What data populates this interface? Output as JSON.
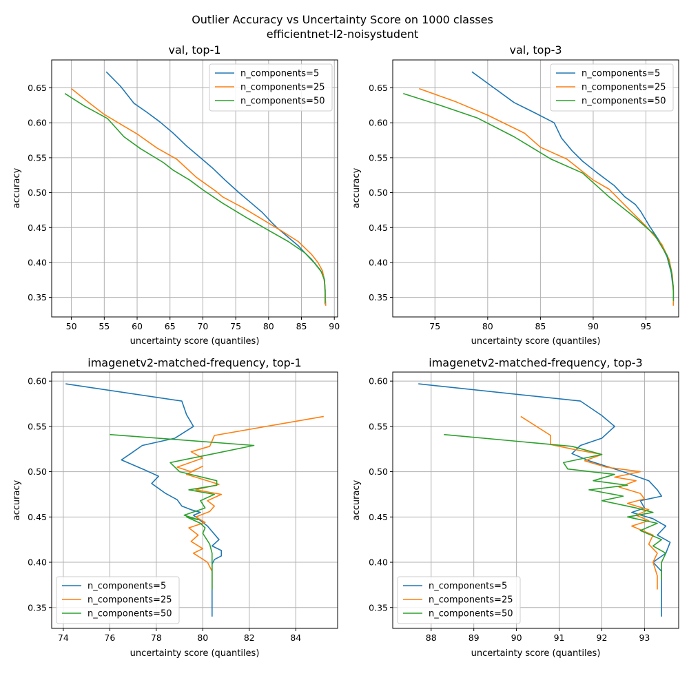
{
  "figure": {
    "title_line1": "Outlier Accuracy vs Uncertainty Score on 1000 classes",
    "title_line2": "efficientnet-l2-noisystudent"
  },
  "colors": {
    "series5": "#1f77b4",
    "series25": "#ff7f0e",
    "series50": "#2ca02c",
    "grid": "#b0b0b0"
  },
  "chart_data": [
    {
      "type": "line",
      "title": "val, top-1",
      "xlabel": "uncertainty score (quantiles)",
      "ylabel": "accuracy",
      "xlim": [
        47,
        90.5
      ],
      "ylim": [
        0.322,
        0.69
      ],
      "xticks": [
        50,
        55,
        60,
        65,
        70,
        75,
        80,
        85,
        90
      ],
      "yticks": [
        0.35,
        0.4,
        0.45,
        0.5,
        0.55,
        0.6,
        0.65
      ],
      "grid": true,
      "legend": "upper right",
      "series": [
        {
          "name": "n_components=5",
          "x": [
            55.3,
            57.5,
            59.5,
            61.5,
            63.5,
            65.5,
            67.5,
            69.5,
            71.5,
            73.5,
            75.5,
            77.5,
            79,
            79.5,
            80.5,
            81.5,
            82.5,
            83.5,
            84.5,
            85.5,
            86.5,
            87.2,
            87.8,
            88.3,
            88.5,
            88.6,
            88.6
          ],
          "y": [
            0.673,
            0.652,
            0.628,
            0.615,
            0.601,
            0.585,
            0.567,
            0.551,
            0.535,
            0.517,
            0.5,
            0.484,
            0.472,
            0.467,
            0.457,
            0.448,
            0.44,
            0.432,
            0.424,
            0.414,
            0.405,
            0.397,
            0.39,
            0.383,
            0.375,
            0.36,
            0.34
          ]
        },
        {
          "name": "n_components=25",
          "x": [
            50,
            52.5,
            55,
            57.5,
            60,
            63,
            66,
            69,
            72,
            73,
            76,
            79,
            82,
            84.5,
            86.5,
            87.5,
            88.2,
            88.5,
            88.6,
            88.7
          ],
          "y": [
            0.649,
            0.63,
            0.612,
            0.598,
            0.584,
            0.564,
            0.548,
            0.522,
            0.502,
            0.494,
            0.479,
            0.462,
            0.445,
            0.43,
            0.412,
            0.4,
            0.388,
            0.372,
            0.355,
            0.338
          ]
        },
        {
          "name": "n_components=50",
          "x": [
            49,
            52,
            55.5,
            58,
            60.5,
            64,
            65.5,
            68,
            70,
            73,
            76.5,
            80,
            83,
            85.5,
            87,
            88,
            88.5,
            88.6,
            88.6
          ],
          "y": [
            0.642,
            0.624,
            0.606,
            0.58,
            0.563,
            0.543,
            0.532,
            0.518,
            0.504,
            0.485,
            0.465,
            0.446,
            0.43,
            0.414,
            0.399,
            0.387,
            0.375,
            0.36,
            0.342
          ]
        }
      ]
    },
    {
      "type": "line",
      "title": "val, top-3",
      "xlabel": "uncertainty score (quantiles)",
      "ylabel": "accuracy",
      "xlim": [
        71,
        98.1
      ],
      "ylim": [
        0.322,
        0.69
      ],
      "xticks": [
        75,
        80,
        85,
        90,
        95
      ],
      "yticks": [
        0.35,
        0.4,
        0.45,
        0.5,
        0.55,
        0.6,
        0.65
      ],
      "grid": true,
      "legend": "upper right",
      "series": [
        {
          "name": "n_components=5",
          "x": [
            78.5,
            80.5,
            82.5,
            84.5,
            86.3,
            87,
            88,
            89,
            90.5,
            92,
            93,
            94,
            94.5,
            95.3,
            96.3,
            97,
            97.4,
            97.6,
            97.6
          ],
          "y": [
            0.673,
            0.651,
            0.629,
            0.614,
            0.6,
            0.578,
            0.56,
            0.545,
            0.527,
            0.51,
            0.494,
            0.483,
            0.473,
            0.453,
            0.43,
            0.408,
            0.385,
            0.36,
            0.343
          ]
        },
        {
          "name": "n_components=25",
          "x": [
            73.5,
            77,
            80,
            83.5,
            85,
            87.5,
            90,
            91.5,
            93,
            95,
            96.5,
            97.2,
            97.5,
            97.6,
            97.6
          ],
          "y": [
            0.649,
            0.63,
            0.611,
            0.585,
            0.565,
            0.548,
            0.518,
            0.505,
            0.482,
            0.452,
            0.426,
            0.404,
            0.382,
            0.358,
            0.338
          ]
        },
        {
          "name": "n_components=50",
          "x": [
            72,
            75.5,
            79,
            82.5,
            86,
            89,
            91.5,
            94,
            95.8,
            97,
            97.4,
            97.6,
            97.6
          ],
          "y": [
            0.642,
            0.625,
            0.607,
            0.58,
            0.548,
            0.528,
            0.494,
            0.464,
            0.44,
            0.41,
            0.388,
            0.365,
            0.345
          ]
        }
      ]
    },
    {
      "type": "line",
      "title": "imagenetv2-matched-frequency, top-1",
      "xlabel": "uncertainty score (quantiles)",
      "ylabel": "accuracy",
      "xlim": [
        73.5,
        85.8
      ],
      "ylim": [
        0.327,
        0.61
      ],
      "xticks": [
        74,
        76,
        78,
        80,
        82,
        84
      ],
      "yticks": [
        0.35,
        0.4,
        0.45,
        0.5,
        0.55,
        0.6
      ],
      "grid": true,
      "legend": "lower left",
      "series": [
        {
          "name": "n_components=5",
          "x": [
            74.1,
            79.1,
            79.3,
            79.6,
            78.8,
            77.4,
            76.9,
            76.5,
            77.5,
            78.1,
            77.8,
            78.4,
            78.9,
            79.1,
            79.5,
            79.9,
            79.6,
            80.2,
            80.7,
            80.4,
            80.8,
            80.8,
            80.5,
            80.4,
            80.4,
            80.4,
            80.4,
            80.4
          ],
          "y": [
            0.597,
            0.578,
            0.563,
            0.55,
            0.537,
            0.529,
            0.52,
            0.513,
            0.502,
            0.495,
            0.487,
            0.476,
            0.469,
            0.462,
            0.458,
            0.455,
            0.452,
            0.44,
            0.425,
            0.418,
            0.413,
            0.407,
            0.403,
            0.398,
            0.39,
            0.375,
            0.358,
            0.34
          ]
        },
        {
          "name": "n_components=25",
          "x": [
            85.2,
            80.5,
            80.3,
            79.5,
            80,
            78.9,
            79.5,
            80,
            79.3,
            80.7,
            79.7,
            80.8,
            80.2,
            80.5,
            80.3,
            79.7,
            80.1,
            79.4,
            79.8,
            79.5,
            80,
            79.6,
            80.2,
            80.4,
            80.4,
            80.4
          ],
          "y": [
            0.561,
            0.54,
            0.528,
            0.522,
            0.515,
            0.505,
            0.5,
            0.506,
            0.497,
            0.486,
            0.48,
            0.475,
            0.468,
            0.462,
            0.456,
            0.45,
            0.444,
            0.438,
            0.43,
            0.423,
            0.415,
            0.41,
            0.4,
            0.39,
            0.38,
            0.37
          ]
        },
        {
          "name": "n_components=50",
          "x": [
            76,
            82.2,
            80.5,
            78.6,
            79,
            80.6,
            80.6,
            79.4,
            80.5,
            79.9,
            80.1,
            79.2,
            79.8,
            79.3,
            79.9,
            80.1,
            80,
            80.3,
            80.4,
            80.4,
            80.4,
            80.4,
            80.4
          ],
          "y": [
            0.541,
            0.529,
            0.52,
            0.51,
            0.5,
            0.49,
            0.485,
            0.48,
            0.475,
            0.468,
            0.46,
            0.452,
            0.447,
            0.45,
            0.443,
            0.438,
            0.432,
            0.42,
            0.41,
            0.4,
            0.39,
            0.38,
            0.37
          ]
        }
      ]
    },
    {
      "type": "line",
      "title": "imagenetv2-matched-frequency, top-3",
      "xlabel": "uncertainty score (quantiles)",
      "ylabel": "accuracy",
      "xlim": [
        87.1,
        93.8
      ],
      "ylim": [
        0.327,
        0.61
      ],
      "xticks": [
        88,
        89,
        90,
        91,
        92,
        93
      ],
      "yticks": [
        0.35,
        0.4,
        0.45,
        0.5,
        0.55,
        0.6
      ],
      "grid": true,
      "legend": "lower left",
      "series": [
        {
          "name": "n_components=5",
          "x": [
            87.7,
            91.5,
            92,
            92.3,
            92,
            91.5,
            91.3,
            91.7,
            92.5,
            93.1,
            93.3,
            93.4,
            92.9,
            93,
            92.7,
            93.2,
            93.5,
            93.3,
            93.6,
            93.5,
            93.2,
            93.4,
            93.4,
            93.4,
            93.4
          ],
          "y": [
            0.597,
            0.578,
            0.562,
            0.55,
            0.537,
            0.529,
            0.52,
            0.512,
            0.5,
            0.49,
            0.48,
            0.473,
            0.468,
            0.46,
            0.455,
            0.448,
            0.44,
            0.43,
            0.422,
            0.41,
            0.4,
            0.39,
            0.38,
            0.36,
            0.34
          ]
        },
        {
          "name": "n_components=25",
          "x": [
            90.1,
            90.8,
            90.8,
            91.3,
            92,
            91.6,
            92.1,
            92.9,
            92.3,
            92.8,
            92.4,
            92.9,
            93,
            92.6,
            93.1,
            92.8,
            93.1,
            92.7,
            93.2,
            93.1,
            93.3,
            93.2,
            93.3,
            93.3
          ],
          "y": [
            0.561,
            0.54,
            0.53,
            0.525,
            0.519,
            0.512,
            0.505,
            0.5,
            0.494,
            0.49,
            0.483,
            0.476,
            0.47,
            0.465,
            0.458,
            0.452,
            0.446,
            0.44,
            0.43,
            0.42,
            0.41,
            0.4,
            0.385,
            0.37
          ]
        },
        {
          "name": "n_components=50",
          "x": [
            88.3,
            91.3,
            92,
            91.1,
            91.2,
            92.3,
            91.8,
            92.6,
            91.7,
            92.5,
            92,
            92.8,
            93.2,
            92.6,
            93.3,
            92.9,
            93.4,
            93.2,
            93.5,
            93.4,
            93.4,
            93.4
          ],
          "y": [
            0.541,
            0.528,
            0.519,
            0.51,
            0.503,
            0.497,
            0.49,
            0.485,
            0.48,
            0.473,
            0.468,
            0.46,
            0.455,
            0.45,
            0.443,
            0.435,
            0.425,
            0.418,
            0.41,
            0.4,
            0.39,
            0.38
          ]
        }
      ]
    }
  ]
}
